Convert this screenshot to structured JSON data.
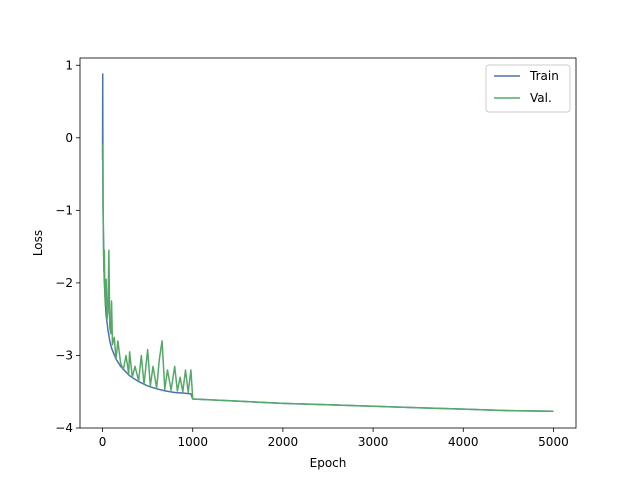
{
  "chart_data": {
    "type": "line",
    "xlabel": "Epoch",
    "ylabel": "Loss",
    "xlim": [
      -250,
      5250
    ],
    "ylim": [
      -4.0,
      1.1
    ],
    "x_ticks": [
      0,
      1000,
      2000,
      3000,
      4000,
      5000
    ],
    "x_tick_labels": [
      "0",
      "1000",
      "2000",
      "3000",
      "4000",
      "5000"
    ],
    "y_ticks": [
      -4,
      -3,
      -2,
      -1,
      0,
      1
    ],
    "y_tick_labels": [
      "−4",
      "−3",
      "−2",
      "−1",
      "0",
      "1"
    ],
    "grid": false,
    "legend_position": "top-right",
    "series": [
      {
        "name": "Train",
        "color": "#4c72b0",
        "x": [
          0,
          2,
          5,
          10,
          15,
          20,
          30,
          40,
          50,
          60,
          80,
          100,
          150,
          200,
          300,
          400,
          500,
          600,
          700,
          800,
          900,
          980,
          1000,
          1500,
          2000,
          2500,
          3000,
          3500,
          4000,
          4500,
          5000
        ],
        "values": [
          -0.3,
          0.88,
          -0.9,
          -1.3,
          -1.7,
          -2.0,
          -2.25,
          -2.45,
          -2.55,
          -2.65,
          -2.8,
          -2.9,
          -3.05,
          -3.15,
          -3.28,
          -3.36,
          -3.42,
          -3.46,
          -3.49,
          -3.51,
          -3.52,
          -3.53,
          -3.6,
          -3.63,
          -3.66,
          -3.68,
          -3.7,
          -3.72,
          -3.74,
          -3.76,
          -3.77
        ]
      },
      {
        "name": "Val.",
        "color": "#55a868",
        "x": [
          0,
          3,
          6,
          10,
          15,
          20,
          25,
          30,
          40,
          50,
          60,
          70,
          80,
          90,
          100,
          110,
          130,
          150,
          170,
          200,
          230,
          260,
          290,
          300,
          330,
          360,
          400,
          430,
          460,
          500,
          530,
          560,
          600,
          630,
          660,
          690,
          720,
          760,
          800,
          830,
          860,
          890,
          920,
          950,
          980,
          1000,
          1500,
          2000,
          2500,
          3000,
          3500,
          4000,
          4500,
          5000
        ],
        "values": [
          -0.2,
          -0.1,
          -1.0,
          -1.5,
          -1.85,
          -1.55,
          -2.05,
          -2.3,
          -1.95,
          -2.5,
          -2.4,
          -1.55,
          -2.6,
          -2.7,
          -2.25,
          -2.85,
          -2.75,
          -3.05,
          -2.8,
          -3.1,
          -3.2,
          -3.0,
          -3.25,
          -2.95,
          -3.3,
          -3.15,
          -3.35,
          -3.0,
          -3.4,
          -2.92,
          -3.42,
          -3.15,
          -3.45,
          -3.05,
          -2.8,
          -3.47,
          -3.2,
          -3.48,
          -3.15,
          -3.49,
          -3.3,
          -3.5,
          -3.2,
          -3.51,
          -3.2,
          -3.6,
          -3.63,
          -3.66,
          -3.68,
          -3.7,
          -3.72,
          -3.74,
          -3.76,
          -3.77
        ]
      }
    ]
  }
}
